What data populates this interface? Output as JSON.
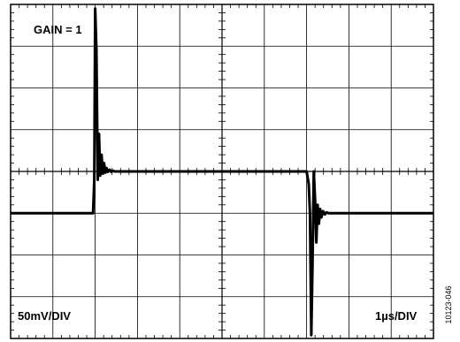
{
  "figure_id": "10123-046",
  "chart_data": {
    "type": "line",
    "annotations": {
      "gain": "GAIN = 1",
      "vertical_scale": "50mV/DIV",
      "horizontal_scale": "1µs/DIV"
    },
    "grid": true,
    "divisions": {
      "x": 10,
      "y": 8
    },
    "xlim_div": [
      0,
      10
    ],
    "ylim_div": [
      0,
      8
    ],
    "trace_color": "#000000",
    "series": [
      {
        "x": [
          0,
          1.95,
          1.98,
          2.0,
          2.03,
          2.06,
          2.09,
          2.12,
          2.15,
          2.18,
          2.21,
          2.24,
          2.27,
          2.3,
          2.34,
          2.38,
          2.42,
          2.46,
          2.52,
          2.6,
          7.0,
          7.05,
          7.08,
          7.11,
          7.14,
          7.17,
          7.2,
          7.23,
          7.26,
          7.29,
          7.32,
          7.35,
          7.39,
          7.43,
          7.47,
          7.52,
          7.6,
          7.7,
          10
        ],
        "y": [
          3.0,
          3.0,
          3.8,
          7.9,
          6.9,
          3.8,
          4.9,
          3.9,
          4.4,
          3.95,
          4.2,
          3.97,
          4.08,
          3.99,
          4.04,
          3.99,
          4.02,
          4.0,
          4.0,
          4.0,
          4.0,
          3.7,
          3.0,
          0.08,
          1.8,
          4.0,
          3.3,
          2.3,
          3.2,
          2.75,
          3.1,
          2.9,
          3.05,
          2.97,
          3.02,
          3.0,
          3.0,
          3.0,
          3.0
        ]
      }
    ]
  }
}
